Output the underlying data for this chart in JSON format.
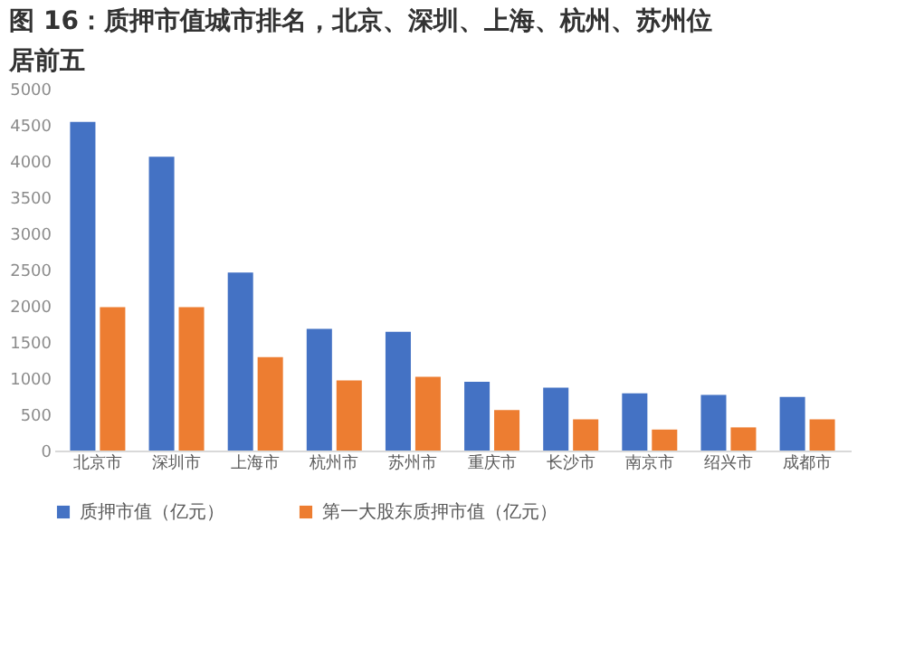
{
  "chart_data": {
    "type": "bar",
    "title": "图 16：质押市值城市排名，北京、深圳、上海、杭州、苏州位居前五",
    "categories": [
      "北京市",
      "深圳市",
      "上海市",
      "杭州市",
      "苏州市",
      "重庆市",
      "长沙市",
      "南京市",
      "绍兴市",
      "成都市"
    ],
    "series": [
      {
        "name": "质押市值（亿元）",
        "color": "#4472c4",
        "values": [
          4540,
          4060,
          2460,
          1680,
          1640,
          950,
          870,
          790,
          770,
          740
        ]
      },
      {
        "name": "第一大股东质押市值（亿元）",
        "color": "#ed7d31",
        "values": [
          1980,
          1980,
          1290,
          970,
          1020,
          560,
          430,
          290,
          320,
          430
        ]
      }
    ],
    "ylim": [
      0,
      5000
    ],
    "yticks": [
      0,
      500,
      1000,
      1500,
      2000,
      2500,
      3000,
      3500,
      4000,
      4500,
      5000
    ],
    "grid": false,
    "legend": "bottom"
  }
}
